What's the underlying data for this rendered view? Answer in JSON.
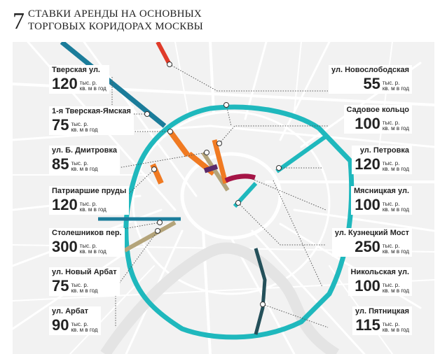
{
  "header": {
    "number": "7",
    "title_line1": "СТАВКИ АРЕНДЫ НА ОСНОВНЫХ",
    "title_line2": "ТОРГОВЫХ КОРИДОРАХ МОСКВЫ"
  },
  "unit_line1": "тыс. р.",
  "unit_line2": "кв. м в год",
  "colors": {
    "ring": "#1fb8bd",
    "tverskaya": "#1b7c9a",
    "orange": "#f07a22",
    "red": "#e03b2a",
    "tan": "#b4a47a",
    "purple": "#5a2a6a",
    "crimson": "#a51446",
    "darkteal": "#24505a",
    "map_bg": "#f2f2f2",
    "road": "#ffffff"
  },
  "left_labels": [
    {
      "name": "Тверская ул.",
      "value": "120"
    },
    {
      "name": "1-я Тверская-Ямская",
      "value": "75"
    },
    {
      "name": "ул. Б. Дмитровка",
      "value": "85"
    },
    {
      "name": "Патриаршие пруды",
      "value": "120"
    },
    {
      "name": "Столешников пер.",
      "value": "300"
    },
    {
      "name": "ул. Новый Арбат",
      "value": "75"
    },
    {
      "name": "ул. Арбат",
      "value": "90"
    }
  ],
  "right_labels": [
    {
      "name": "ул. Новослободская",
      "value": "55"
    },
    {
      "name": "Садовое кольцо",
      "value": "100"
    },
    {
      "name": "ул. Петровка",
      "value": "120"
    },
    {
      "name": "Мясницкая ул.",
      "value": "100"
    },
    {
      "name": "ул. Кузнецкий Мост",
      "value": "250"
    },
    {
      "name": "Никольская ул.",
      "value": "100"
    },
    {
      "name": "ул. Пятницкая",
      "value": "115"
    }
  ]
}
